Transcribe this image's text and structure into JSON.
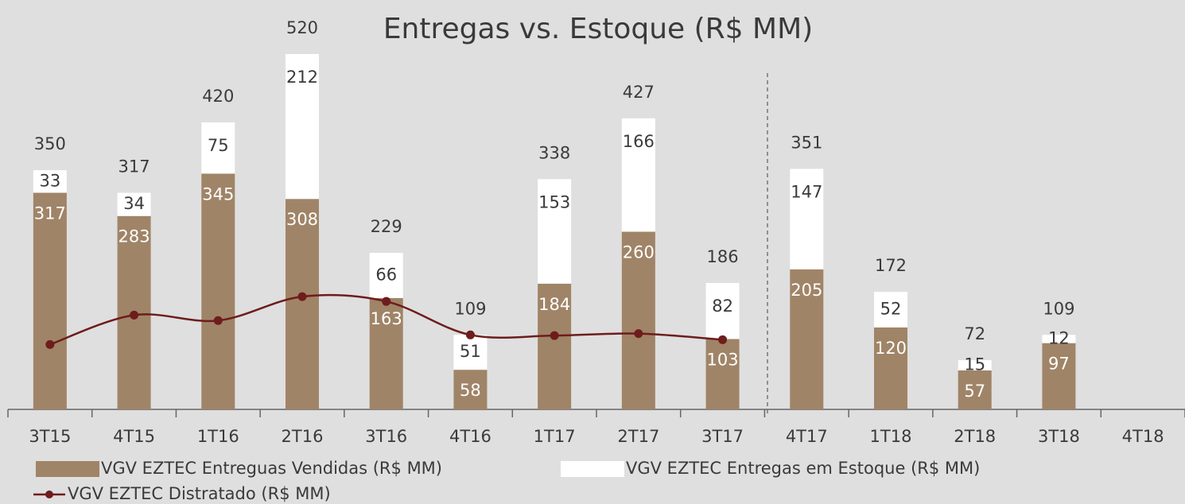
{
  "chart_data": {
    "type": "bar",
    "title": "Entregas vs. Estoque (R$ MM)",
    "categories": [
      "3T15",
      "4T15",
      "1T16",
      "2T16",
      "3T16",
      "4T16",
      "1T17",
      "2T17",
      "3T17",
      "4T17",
      "1T18",
      "2T18",
      "3T18",
      "4T18"
    ],
    "stacked": true,
    "series": [
      {
        "name": "VGV EZTEC Entreguas Vendidas (R$ MM)",
        "color": "#a08467",
        "type": "bar",
        "values": [
          317,
          283,
          345,
          308,
          163,
          58,
          184,
          260,
          103,
          205,
          120,
          57,
          97,
          null
        ]
      },
      {
        "name": "VGV EZTEC Entregas em Estoque (R$ MM)",
        "color": "#ffffff",
        "type": "bar",
        "values": [
          33,
          34,
          75,
          212,
          66,
          51,
          153,
          166,
          82,
          147,
          52,
          15,
          12,
          null
        ]
      },
      {
        "name": "VGV EZTEC Distratado (R$ MM)",
        "color": "#6e1c1c",
        "type": "line",
        "values": [
          95,
          138,
          130,
          165,
          158,
          109,
          108,
          111,
          102,
          null,
          null,
          null,
          null,
          null
        ]
      }
    ],
    "totals": [
      350,
      317,
      420,
      520,
      229,
      109,
      338,
      427,
      186,
      351,
      172,
      72,
      109,
      null
    ]
  }
}
